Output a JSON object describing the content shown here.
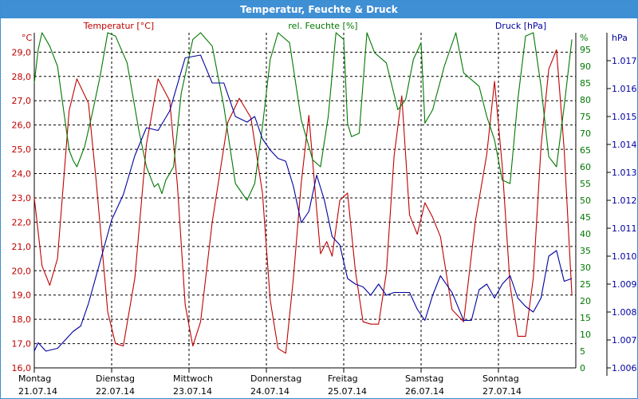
{
  "window": {
    "title": "Temperatur, Feuchte & Druck"
  },
  "chart_data": {
    "type": "line",
    "title": "Temperatur, Feuchte & Druck",
    "grid": true,
    "colors": {
      "temperature": "#c00000",
      "humidity": "#007800",
      "pressure": "#0000a0"
    },
    "axes": {
      "left": {
        "label": "Temperatur [°C]",
        "unit": "°C",
        "range": [
          16.0,
          29.8
        ],
        "ticks": [
          "16,0",
          "17,0",
          "18,0",
          "19,0",
          "20,0",
          "21,0",
          "22,0",
          "23,0",
          "24,0",
          "25,0",
          "26,0",
          "27,0",
          "28,0",
          "29,0"
        ]
      },
      "right1": {
        "label": "rel. Feuchte [%]",
        "unit": "%",
        "range": [
          0,
          100
        ],
        "ticks": [
          "0",
          "5",
          "10",
          "15",
          "20",
          "25",
          "30",
          "35",
          "40",
          "45",
          "50",
          "55",
          "60",
          "65",
          "70",
          "75",
          "80",
          "85",
          "90",
          "95"
        ]
      },
      "right2": {
        "label": "Druck [hPa]",
        "unit": "hPa",
        "range": [
          1.006,
          1.018
        ],
        "ticks": [
          "1.006",
          "1.007",
          "1.008",
          "1.009",
          "1.010",
          "1.011",
          "1.012",
          "1.013",
          "1.014",
          "1.015",
          "1.016",
          "1.017"
        ]
      }
    },
    "x": {
      "range_days": [
        0,
        7
      ],
      "days": [
        {
          "name": "Montag",
          "date": "21.07.14"
        },
        {
          "name": "Dienstag",
          "date": "22.07.14"
        },
        {
          "name": "Mittwoch",
          "date": "23.07.14"
        },
        {
          "name": "Donnerstag",
          "date": "24.07.14"
        },
        {
          "name": "Freitag",
          "date": "25.07.14"
        },
        {
          "name": "Samstag",
          "date": "26.07.14"
        },
        {
          "name": "Sonntag",
          "date": "27.07.14"
        }
      ]
    },
    "series": [
      {
        "name": "Temperatur [°C]",
        "key": "temperature",
        "axis": "left",
        "x": [
          0,
          0.1,
          0.2,
          0.3,
          0.45,
          0.55,
          0.7,
          0.8,
          0.95,
          1.05,
          1.15,
          1.3,
          1.45,
          1.6,
          1.75,
          1.85,
          1.95,
          2.05,
          2.15,
          2.3,
          2.5,
          2.65,
          2.8,
          2.95,
          3.05,
          3.15,
          3.25,
          3.35,
          3.45,
          3.55,
          3.65,
          3.7,
          3.78,
          3.85,
          3.95,
          4.05,
          4.15,
          4.25,
          4.35,
          4.45,
          4.55,
          4.65,
          4.75,
          4.85,
          4.95,
          5.05,
          5.15,
          5.25,
          5.4,
          5.55,
          5.7,
          5.85,
          5.95,
          6.05,
          6.15,
          6.25,
          6.35,
          6.45,
          6.55,
          6.65,
          6.75,
          6.85,
          6.95
        ],
        "values": [
          23.0,
          20.2,
          19.4,
          20.5,
          26.6,
          27.9,
          26.9,
          23.7,
          18.3,
          17.0,
          16.9,
          19.7,
          25.2,
          27.9,
          27.0,
          23.5,
          18.6,
          16.9,
          17.9,
          22.0,
          26.1,
          27.1,
          26.3,
          23.2,
          18.8,
          16.8,
          16.6,
          19.7,
          23.6,
          26.4,
          22.5,
          20.7,
          21.2,
          20.6,
          22.9,
          23.2,
          20.0,
          17.9,
          17.8,
          17.8,
          19.9,
          24.7,
          27.2,
          22.3,
          21.5,
          22.8,
          22.2,
          21.4,
          18.4,
          17.9,
          22.0,
          24.8,
          27.8,
          24.3,
          19.4,
          17.3,
          17.3,
          19.7,
          25.1,
          28.3,
          29.1,
          25.0,
          19.0
        ]
      },
      {
        "name": "rel. Feuchte [%]",
        "key": "humidity",
        "axis": "right1",
        "x": [
          0,
          0.05,
          0.1,
          0.2,
          0.3,
          0.45,
          0.5,
          0.55,
          0.65,
          0.75,
          0.85,
          0.95,
          1.05,
          1.2,
          1.35,
          1.45,
          1.55,
          1.6,
          1.65,
          1.7,
          1.8,
          1.9,
          2.05,
          2.15,
          2.3,
          2.45,
          2.6,
          2.75,
          2.85,
          2.95,
          3.05,
          3.15,
          3.3,
          3.45,
          3.6,
          3.7,
          3.8,
          3.9,
          4.0,
          4.05,
          4.1,
          4.2,
          4.3,
          4.4,
          4.55,
          4.7,
          4.8,
          4.9,
          5.0,
          5.05,
          5.15,
          5.3,
          5.45,
          5.55,
          5.65,
          5.75,
          5.85,
          5.95,
          6.05,
          6.15,
          6.25,
          6.35,
          6.45,
          6.55,
          6.65,
          6.75,
          6.85,
          6.95
        ],
        "values": [
          85,
          95,
          100,
          96,
          90,
          65,
          62,
          60,
          66,
          76,
          87,
          100,
          99,
          91,
          71,
          60,
          54,
          55,
          52,
          56,
          60,
          82,
          98,
          100,
          96,
          78,
          55,
          50,
          55,
          72,
          92,
          100,
          97,
          74,
          62,
          60,
          75,
          100,
          98,
          73,
          69,
          70,
          100,
          94,
          91,
          77,
          80,
          92,
          97,
          73,
          77,
          90,
          100,
          88,
          86,
          84,
          75,
          68,
          56,
          55,
          80,
          99,
          100,
          84,
          63,
          60,
          78,
          98
        ]
      },
      {
        "name": "Druck [hPa]",
        "key": "pressure",
        "axis": "right2",
        "x": [
          0,
          0.05,
          0.15,
          0.3,
          0.5,
          0.6,
          0.7,
          0.85,
          1.0,
          1.15,
          1.3,
          1.45,
          1.6,
          1.75,
          1.95,
          2.15,
          2.3,
          2.45,
          2.6,
          2.75,
          2.85,
          2.95,
          3.05,
          3.15,
          3.25,
          3.35,
          3.45,
          3.55,
          3.65,
          3.75,
          3.85,
          3.95,
          4.05,
          4.15,
          4.25,
          4.35,
          4.45,
          4.55,
          4.65,
          4.75,
          4.85,
          4.95,
          5.05,
          5.15,
          5.25,
          5.4,
          5.55,
          5.65,
          5.75,
          5.85,
          5.95,
          6.05,
          6.15,
          6.25,
          6.35,
          6.45,
          6.55,
          6.65,
          6.75,
          6.85,
          6.95
        ],
        "values": [
          1.0066,
          1.0069,
          1.0066,
          1.0067,
          1.0073,
          1.0075,
          1.0083,
          1.0098,
          1.0113,
          1.0122,
          1.0136,
          1.0146,
          1.0145,
          1.0152,
          1.0171,
          1.0172,
          1.0162,
          1.0162,
          1.015,
          1.0148,
          1.015,
          1.0142,
          1.0138,
          1.0135,
          1.0134,
          1.0125,
          1.0112,
          1.0116,
          1.0129,
          1.012,
          1.0107,
          1.0104,
          1.0092,
          1.009,
          1.0089,
          1.0086,
          1.009,
          1.0086,
          1.0087,
          1.0087,
          1.0087,
          1.0081,
          1.0077,
          1.0086,
          1.0093,
          1.0087,
          1.0077,
          1.0077,
          1.0088,
          1.009,
          1.0085,
          1.009,
          1.0093,
          1.0085,
          1.0082,
          1.008,
          1.0085,
          1.01,
          1.0102,
          1.0091,
          1.0092
        ]
      }
    ]
  }
}
